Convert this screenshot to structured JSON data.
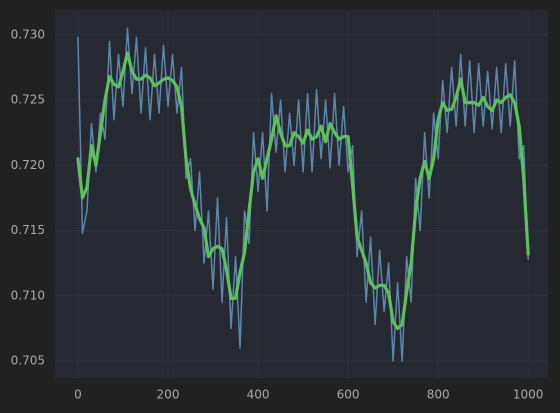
{
  "chart_data": {
    "type": "line",
    "x": [
      0,
      10,
      20,
      30,
      40,
      50,
      60,
      70,
      80,
      90,
      100,
      110,
      120,
      130,
      140,
      150,
      160,
      170,
      180,
      190,
      200,
      210,
      220,
      230,
      240,
      250,
      260,
      270,
      280,
      290,
      300,
      310,
      320,
      330,
      340,
      350,
      360,
      370,
      380,
      390,
      400,
      410,
      420,
      430,
      440,
      450,
      460,
      470,
      480,
      490,
      500,
      510,
      520,
      530,
      540,
      550,
      560,
      570,
      580,
      590,
      600,
      610,
      620,
      630,
      640,
      650,
      660,
      670,
      680,
      690,
      700,
      710,
      720,
      730,
      740,
      750,
      760,
      770,
      780,
      790,
      800,
      810,
      820,
      830,
      840,
      850,
      860,
      870,
      880,
      890,
      900,
      910,
      920,
      930,
      940,
      950,
      960,
      970,
      980,
      990,
      1000
    ],
    "series": [
      {
        "color": "#5b88aa",
        "values": [
          0.7298,
          0.7148,
          0.7165,
          0.7232,
          0.7195,
          0.724,
          0.722,
          0.7295,
          0.7235,
          0.7285,
          0.7245,
          0.7305,
          0.7255,
          0.7298,
          0.724,
          0.729,
          0.7235,
          0.7285,
          0.724,
          0.7292,
          0.7245,
          0.7285,
          0.724,
          0.7275,
          0.719,
          0.7205,
          0.715,
          0.7195,
          0.7125,
          0.7165,
          0.7105,
          0.7175,
          0.7095,
          0.716,
          0.7075,
          0.713,
          0.706,
          0.7165,
          0.714,
          0.7225,
          0.718,
          0.7225,
          0.7165,
          0.7255,
          0.721,
          0.725,
          0.7195,
          0.724,
          0.72,
          0.725,
          0.7195,
          0.7255,
          0.7195,
          0.7258,
          0.7205,
          0.725,
          0.7198,
          0.7255,
          0.72,
          0.7245,
          0.7195,
          0.7215,
          0.713,
          0.7165,
          0.7095,
          0.7145,
          0.7078,
          0.7135,
          0.7088,
          0.7125,
          0.705,
          0.711,
          0.705,
          0.713,
          0.7095,
          0.719,
          0.715,
          0.7225,
          0.7175,
          0.724,
          0.7205,
          0.7265,
          0.7225,
          0.7275,
          0.723,
          0.7285,
          0.723,
          0.728,
          0.7225,
          0.7278,
          0.723,
          0.7272,
          0.7228,
          0.7275,
          0.7225,
          0.7278,
          0.723,
          0.728,
          0.7205,
          0.7215,
          0.7128
        ]
      },
      {
        "color": "#5cc05c",
        "values": [
          0.7205,
          0.7175,
          0.7183,
          0.7215,
          0.72,
          0.7225,
          0.725,
          0.7268,
          0.7262,
          0.726,
          0.7272,
          0.7286,
          0.7272,
          0.7266,
          0.7266,
          0.7269,
          0.7267,
          0.7261,
          0.7263,
          0.7266,
          0.7267,
          0.7265,
          0.726,
          0.7245,
          0.7205,
          0.7182,
          0.717,
          0.7159,
          0.7152,
          0.713,
          0.7136,
          0.7138,
          0.7136,
          0.712,
          0.7098,
          0.7098,
          0.7118,
          0.7133,
          0.7165,
          0.7195,
          0.7205,
          0.719,
          0.7205,
          0.722,
          0.7238,
          0.7225,
          0.7215,
          0.7215,
          0.7225,
          0.7222,
          0.7217,
          0.7227,
          0.722,
          0.7222,
          0.723,
          0.7218,
          0.7232,
          0.7225,
          0.722,
          0.7222,
          0.7222,
          0.7185,
          0.7145,
          0.7135,
          0.7125,
          0.711,
          0.7106,
          0.7108,
          0.7108,
          0.7102,
          0.708,
          0.7075,
          0.7078,
          0.7103,
          0.7125,
          0.7165,
          0.719,
          0.7203,
          0.719,
          0.7205,
          0.7235,
          0.7248,
          0.7242,
          0.7243,
          0.7252,
          0.7266,
          0.7248,
          0.7248,
          0.7248,
          0.7246,
          0.7252,
          0.7245,
          0.7242,
          0.725,
          0.7248,
          0.7252,
          0.7254,
          0.7248,
          0.723,
          0.719,
          0.7132
        ]
      }
    ],
    "xlim": [
      -51,
      1044
    ],
    "ylim": [
      0.7037,
      0.7319
    ],
    "xticks": [
      0,
      200,
      400,
      600,
      800,
      1000
    ],
    "yticks": [
      0.705,
      {
        "value": 0.71,
        "label": "0.710"
      },
      0.715,
      {
        "value": 0.72,
        "label": "0.720"
      },
      0.725,
      {
        "value": 0.73,
        "label": "0.730"
      }
    ],
    "grid": true
  }
}
